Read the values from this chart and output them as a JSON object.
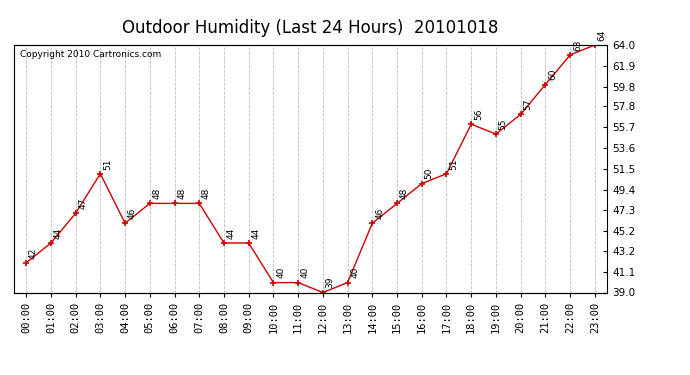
{
  "title": "Outdoor Humidity (Last 24 Hours)  20101018",
  "copyright": "Copyright 2010 Cartronics.com",
  "x_labels": [
    "00:00",
    "01:00",
    "02:00",
    "03:00",
    "04:00",
    "05:00",
    "06:00",
    "07:00",
    "08:00",
    "09:00",
    "10:00",
    "11:00",
    "12:00",
    "13:00",
    "14:00",
    "15:00",
    "16:00",
    "17:00",
    "18:00",
    "19:00",
    "20:00",
    "21:00",
    "22:00",
    "23:00"
  ],
  "x_values": [
    0,
    1,
    2,
    3,
    4,
    5,
    6,
    7,
    8,
    9,
    10,
    11,
    12,
    13,
    14,
    15,
    16,
    17,
    18,
    19,
    20,
    21,
    22,
    23
  ],
  "y_values": [
    42,
    44,
    47,
    51,
    46,
    48,
    48,
    48,
    44,
    44,
    40,
    40,
    39,
    40,
    46,
    48,
    50,
    51,
    56,
    55,
    57,
    60,
    63,
    64
  ],
  "point_labels": [
    "42",
    "44",
    "47",
    "51",
    "46",
    "48",
    "48",
    "48",
    "44",
    "44",
    "40",
    "40",
    "39",
    "40",
    "46",
    "48",
    "50",
    "51",
    "56",
    "55",
    "57",
    "60",
    "63",
    "64"
  ],
  "line_color": "#cc0000",
  "marker_color": "#cc0000",
  "background_color": "#ffffff",
  "grid_color": "#bbbbbb",
  "ylim": [
    39.0,
    64.0
  ],
  "yticks": [
    39.0,
    41.1,
    43.2,
    45.2,
    47.3,
    49.4,
    51.5,
    53.6,
    55.7,
    57.8,
    59.8,
    61.9,
    64.0
  ],
  "title_fontsize": 12,
  "tick_fontsize": 7.5
}
